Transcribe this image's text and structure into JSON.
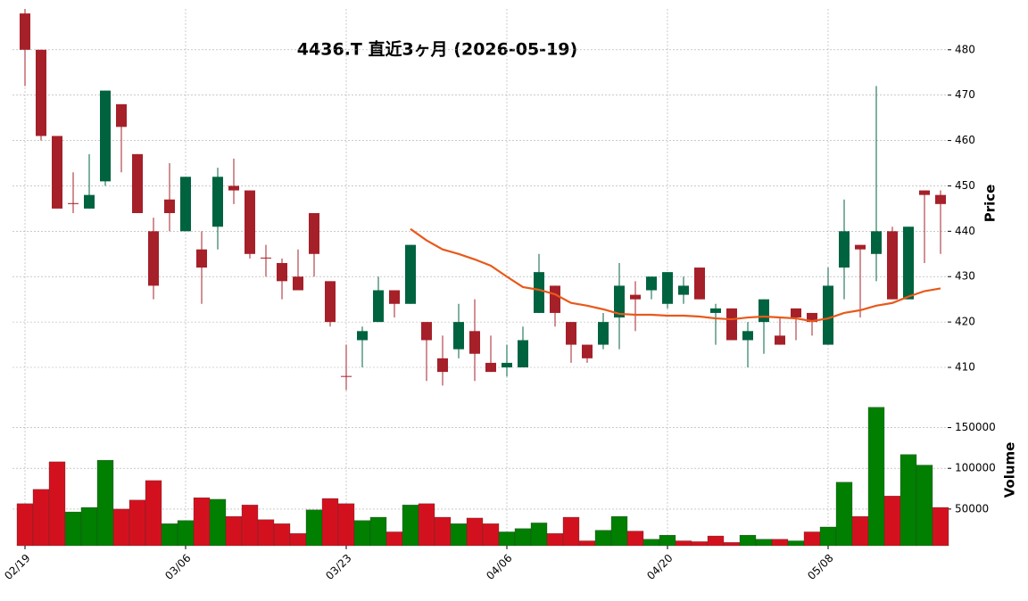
{
  "chart_data": [
    {
      "type": "candlestick",
      "title": "4436.T  直近3ヶ月  (2026-05-19)",
      "ylabel": "Price",
      "categories": [
        "02/19",
        null,
        null,
        null,
        null,
        null,
        null,
        null,
        null,
        null,
        "03/06",
        null,
        null,
        null,
        null,
        null,
        null,
        null,
        null,
        null,
        "03/23",
        null,
        null,
        null,
        null,
        null,
        null,
        null,
        null,
        null,
        "04/06",
        null,
        null,
        null,
        null,
        null,
        null,
        null,
        null,
        null,
        "04/20",
        null,
        null,
        null,
        null,
        null,
        null,
        null,
        null,
        null,
        "05/08",
        null,
        null,
        null,
        null,
        null,
        null,
        null
      ],
      "open": [
        488,
        480,
        461,
        446.2,
        445,
        451,
        468,
        457,
        440,
        447,
        440,
        436,
        441,
        450,
        449,
        434.2,
        433,
        430,
        444,
        429,
        408.1,
        416,
        420,
        427,
        424,
        420,
        412,
        414,
        418,
        411,
        410,
        410,
        422,
        428,
        420,
        415,
        415,
        421,
        426,
        427,
        424,
        426,
        432,
        422,
        423,
        416,
        420,
        417,
        423,
        422,
        415,
        432,
        437,
        435,
        440,
        425,
        449,
        448
      ],
      "high": [
        489,
        480,
        461,
        453,
        457,
        471,
        468,
        457,
        443,
        455,
        452,
        440,
        454,
        456,
        449,
        437,
        434,
        436,
        444,
        429,
        415,
        419,
        430,
        427,
        437,
        420,
        417,
        424,
        425,
        417,
        415,
        419,
        435,
        428,
        420,
        415,
        422,
        433,
        429,
        430,
        431,
        430,
        432,
        424,
        423,
        420,
        425,
        421,
        423,
        422,
        432,
        447,
        437,
        472,
        441,
        441,
        449,
        449
      ],
      "low": [
        472,
        460,
        445,
        444,
        445,
        450,
        453,
        444,
        425,
        440,
        440,
        424,
        436,
        446,
        434,
        430,
        425,
        427,
        430,
        419,
        405,
        410,
        420,
        421,
        424,
        407,
        406,
        412,
        407,
        409,
        408,
        410,
        422,
        419,
        411,
        411,
        414,
        414,
        418,
        425,
        423,
        424,
        425,
        415,
        416,
        410,
        413,
        415,
        416,
        417,
        415,
        425,
        421,
        429,
        425,
        425,
        433,
        435
      ],
      "close": [
        480,
        461,
        445,
        446,
        448,
        471,
        463,
        444,
        428,
        444,
        452,
        432,
        452,
        449,
        435,
        434,
        429,
        427,
        435,
        420,
        408,
        418,
        427,
        424,
        437,
        416,
        409,
        420,
        413,
        409,
        411,
        416,
        431,
        422,
        415,
        412,
        420,
        428,
        425,
        430,
        431,
        428,
        425,
        423,
        416,
        418,
        425,
        415,
        421,
        420,
        428,
        440,
        436,
        440,
        425,
        441,
        448,
        446
      ],
      "ma_values": [
        null,
        null,
        null,
        null,
        null,
        null,
        null,
        null,
        null,
        null,
        null,
        null,
        null,
        null,
        null,
        null,
        null,
        null,
        null,
        null,
        null,
        null,
        null,
        null,
        440.5,
        438,
        436,
        435,
        433.8,
        432.4,
        430,
        427.7,
        427.1,
        426.1,
        424.2,
        423.6,
        422.8,
        421.8,
        421.6,
        421.6,
        421.4,
        421.4,
        421.2,
        420.8,
        420.6,
        421,
        421.2,
        421,
        420.8,
        420.2,
        420.8,
        422,
        422.6,
        423.6,
        424.2,
        425.6,
        426.8,
        427.4
      ],
      "ma_color": "#e8591a",
      "up_color": "#006340",
      "down_color": "#a52029",
      "ylim": [
        404.5,
        489
      ],
      "yticks": [
        410,
        420,
        430,
        440,
        450,
        460,
        470,
        480
      ],
      "grid": true
    },
    {
      "type": "bar",
      "ylabel": "Volume",
      "values": [
        56600,
        74200,
        108000,
        46500,
        52000,
        110000,
        50000,
        61000,
        85000,
        32000,
        36000,
        64000,
        62000,
        41000,
        55000,
        37000,
        32000,
        20000,
        49000,
        63000,
        56600,
        36000,
        40000,
        22000,
        55000,
        56600,
        40000,
        32000,
        39000,
        32000,
        22000,
        26000,
        33000,
        20000,
        40000,
        11000,
        24000,
        41000,
        23000,
        13000,
        18000,
        11000,
        10000,
        17000,
        9000,
        18000,
        13000,
        13000,
        11000,
        22000,
        28000,
        83000,
        41000,
        175000,
        66000,
        117000,
        104000,
        52000
      ],
      "up_color": "#007f00",
      "down_color": "#d3111e",
      "ylim": [
        5000,
        190000
      ],
      "yticks": [
        50000,
        100000,
        150000
      ],
      "grid": true
    }
  ]
}
